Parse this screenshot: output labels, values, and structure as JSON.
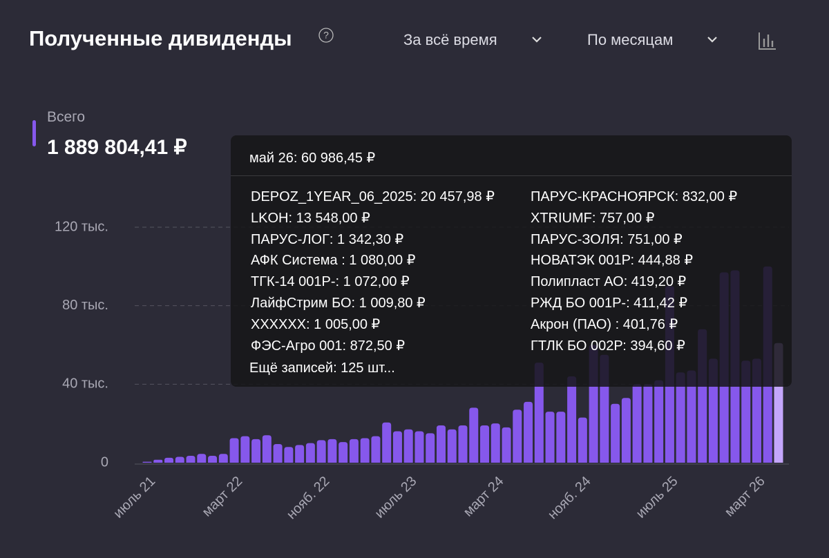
{
  "header": {
    "title": "Полученные дивиденды",
    "period": "За всё время",
    "grouping": "По месяцам"
  },
  "total": {
    "label": "Всего",
    "value": "1 889 804,41 ₽"
  },
  "chart_data": {
    "type": "bar",
    "categories": [
      "июль 21",
      null,
      null,
      null,
      null,
      null,
      null,
      null,
      "март 22",
      null,
      null,
      null,
      null,
      null,
      null,
      null,
      "нояб. 22",
      null,
      null,
      null,
      null,
      null,
      null,
      null,
      "июль 23",
      null,
      null,
      null,
      null,
      null,
      null,
      null,
      "март 24",
      null,
      null,
      null,
      null,
      null,
      null,
      null,
      "нояб. 24",
      null,
      null,
      null,
      null,
      null,
      null,
      null,
      "июль 25",
      null,
      null,
      null,
      null,
      null,
      null,
      null,
      "март 26",
      null,
      null
    ],
    "values": [
      500,
      1500,
      2500,
      3000,
      3500,
      4500,
      3500,
      4500,
      12500,
      13500,
      12000,
      14000,
      9500,
      8000,
      9000,
      10000,
      11500,
      12000,
      10500,
      12000,
      12500,
      13500,
      20500,
      16000,
      17000,
      16000,
      15000,
      19000,
      17000,
      19000,
      28000,
      19000,
      20000,
      18000,
      27000,
      31000,
      51000,
      26000,
      26000,
      44000,
      23000,
      60000,
      55000,
      30000,
      33000,
      40000,
      40000,
      42000,
      90000,
      46000,
      47000,
      68000,
      53000,
      97000,
      98000,
      52000,
      53000,
      100000,
      60986.45
    ],
    "color": "#8658ec",
    "highlight_color": "#c4a6fb",
    "ylim": [
      0,
      120000
    ],
    "yticks": [
      0,
      {
        "value": 40000,
        "label": "40 тыс."
      },
      {
        "value": 80000,
        "label": "80 тыс."
      },
      {
        "value": 120000,
        "label": "120 тыс."
      }
    ],
    "grid": true
  },
  "tooltip": {
    "title": "май 26: 60 986,45 ₽",
    "items": [
      "DEPOZ_1YEAR_06_2025: 20 457,98 ₽",
      "LKOH: 13 548,00 ₽",
      "ПАРУС-ЛОГ: 1 342,30 ₽",
      "АФК Система : 1 080,00 ₽",
      "ТГК-14 001Р-: 1 072,00 ₽",
      "ЛайфСтрим БО: 1 009,80 ₽",
      "XXXXXX: 1 005,00 ₽",
      "ФЭС-Агро 001: 872,50 ₽",
      "ПАРУС-КРАСНОЯРСК: 832,00 ₽",
      "XTRIUMF: 757,00 ₽",
      "ПАРУС-ЗОЛЯ: 751,00 ₽",
      "НОВАТЭК 001Р: 444,88 ₽",
      "Полипласт АО: 419,20 ₽",
      "РЖД БО 001Р-: 411,42 ₽",
      "Акрон (ПАО) : 401,76 ₽",
      "ГТЛК БО 002Р: 394,60 ₽"
    ],
    "more": "Ещё записей: 125 шт..."
  }
}
